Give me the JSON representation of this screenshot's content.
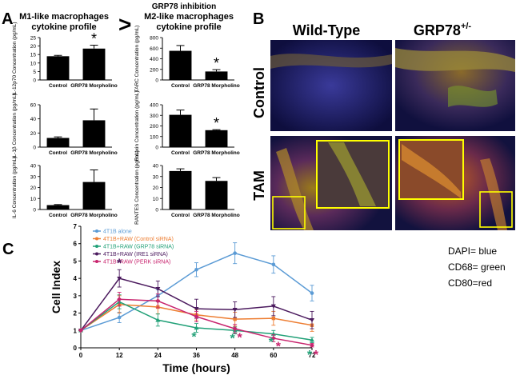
{
  "panel_labels": {
    "a": "A",
    "b": "B",
    "c": "C"
  },
  "panel_a": {
    "top_label": "GRP78 inhibition",
    "m1_title_1": "M1-like macrophages",
    "m1_title_2": "cytokine profile",
    "m2_title_1": "M2-like macrophages",
    "m2_title_2": "cytokine profile",
    "comparator": ">"
  },
  "panel_b": {
    "col_wt": "Wild-Type",
    "col_grp_base": "GRP78",
    "col_grp_sup": "+/-",
    "row_control": "Control",
    "row_tam": "TAM",
    "legend": [
      "DAPI= blue",
      "CD68= green",
      "CD80=red"
    ]
  },
  "colors": {
    "bar": "#000000",
    "series_alone": "#5b9bd5",
    "series_control": "#ed7d31",
    "series_grp78": "#21a077",
    "series_ire1": "#4b1a5e",
    "series_perk": "#c8246e",
    "micro_bg": "#12124a",
    "inset_border": "#ffff00"
  },
  "chart_data": [
    {
      "type": "bar",
      "id": "il12",
      "categories": [
        "Control",
        "GRP78 Morpholino"
      ],
      "values": [
        14,
        18.5
      ],
      "errors": [
        0.5,
        2
      ],
      "ylabel": "IL-12p70 Concentration (pg/mL)",
      "ylim": [
        0,
        25
      ],
      "yticks": [
        0,
        5,
        10,
        15,
        20,
        25
      ],
      "annotations": [
        "*"
      ]
    },
    {
      "type": "bar",
      "id": "il1b",
      "categories": [
        "Control",
        "GRP78 Morpholino"
      ],
      "values": [
        13,
        38
      ],
      "errors": [
        1.5,
        16
      ],
      "ylabel": "IL-1β Concentration (pg/mL)",
      "ylim": [
        0,
        60
      ],
      "yticks": [
        0,
        20,
        40,
        60
      ],
      "annotations": []
    },
    {
      "type": "bar",
      "id": "il6",
      "categories": [
        "Control",
        "GRP78 Morpholino"
      ],
      "values": [
        4,
        25
      ],
      "errors": [
        0.5,
        11
      ],
      "ylabel": "IL-6 Concentration (pg/mL)",
      "ylim": [
        0,
        40
      ],
      "yticks": [
        0,
        10,
        20,
        30,
        40
      ],
      "annotations": []
    },
    {
      "type": "bar",
      "id": "tarc",
      "categories": [
        "Control",
        "GRP78 Morpholino"
      ],
      "values": [
        550,
        160
      ],
      "errors": [
        100,
        35
      ],
      "ylabel": "TARC Concentration (pg/mL)",
      "ylim": [
        0,
        800
      ],
      "yticks": [
        0,
        200,
        400,
        600,
        800
      ],
      "annotations": [
        "*"
      ]
    },
    {
      "type": "bar",
      "id": "eotaxin",
      "categories": [
        "Control",
        "GRP78 Morpholino"
      ],
      "values": [
        305,
        160
      ],
      "errors": [
        45,
        5
      ],
      "ylabel": "Eotaxin Concentration (pg/mL)",
      "ylim": [
        0,
        400
      ],
      "yticks": [
        0,
        100,
        200,
        300,
        400
      ],
      "annotations": [
        "*"
      ]
    },
    {
      "type": "bar",
      "id": "rantes",
      "categories": [
        "Control",
        "GRP78 Morpholino"
      ],
      "values": [
        35,
        26
      ],
      "errors": [
        2,
        3
      ],
      "ylabel": "RANTES Concentration (pg/mL)",
      "ylim": [
        0,
        40
      ],
      "yticks": [
        0,
        10,
        20,
        30,
        40
      ],
      "annotations": []
    },
    {
      "type": "line",
      "id": "cell_index",
      "x": [
        0,
        12,
        24,
        36,
        48,
        60,
        72
      ],
      "xlabel": "Time (hours)",
      "ylabel": "Cell Index",
      "xlim": [
        0,
        72
      ],
      "ylim": [
        0,
        7
      ],
      "xticks": [
        0,
        12,
        24,
        36,
        48,
        60,
        72
      ],
      "yticks": [
        0,
        1,
        2,
        3,
        4,
        5,
        6,
        7
      ],
      "legend_position": "top-left",
      "series": [
        {
          "name": "4T1B alone",
          "values": [
            1,
            1.75,
            3.0,
            4.5,
            5.45,
            4.8,
            3.15
          ],
          "errors": [
            0,
            0.3,
            0.35,
            0.4,
            0.6,
            0.5,
            0.45
          ]
        },
        {
          "name": "4T1B+RAW (Control siRNA)",
          "values": [
            1,
            2.5,
            2.35,
            1.9,
            1.65,
            1.7,
            1.3
          ],
          "errors": [
            0,
            0.5,
            0.4,
            0.3,
            0.4,
            0.4,
            0.35
          ]
        },
        {
          "name": "4T1B+RAW (GRP78 siRNA)",
          "values": [
            1,
            2.65,
            1.6,
            1.15,
            1.0,
            0.8,
            0.45
          ],
          "errors": [
            0,
            0.4,
            0.35,
            0.25,
            0.2,
            0.2,
            0.15
          ]
        },
        {
          "name": "4T1B+RAW (IRE1 siRNA)",
          "values": [
            1,
            4.0,
            3.4,
            2.25,
            2.2,
            2.4,
            1.6
          ],
          "errors": [
            0,
            0.5,
            0.45,
            0.55,
            0.45,
            0.55,
            0.5
          ]
        },
        {
          "name": "4T1B+RAW (PERK siRNA)",
          "values": [
            1,
            2.8,
            2.7,
            1.8,
            1.1,
            0.55,
            0.15
          ],
          "errors": [
            0,
            0.4,
            0.4,
            0.3,
            0.25,
            0.2,
            0.1
          ]
        }
      ],
      "annotations": [
        {
          "x": 12,
          "text": "*",
          "series": "4T1B+RAW (IRE1 siRNA)"
        },
        {
          "x": 36,
          "text": "*",
          "series": "4T1B+RAW (GRP78 siRNA)"
        },
        {
          "x": 48,
          "text": "*",
          "series": "4T1B+RAW (GRP78 siRNA)"
        },
        {
          "x": 48,
          "text": "*",
          "series": "4T1B+RAW (PERK siRNA)"
        },
        {
          "x": 60,
          "text": "*",
          "series": "4T1B+RAW (GRP78 siRNA)"
        },
        {
          "x": 60,
          "text": "*",
          "series": "4T1B+RAW (PERK siRNA)"
        },
        {
          "x": 72,
          "text": "*",
          "series": "4T1B+RAW (GRP78 siRNA)"
        },
        {
          "x": 72,
          "text": "*",
          "series": "4T1B+RAW (PERK siRNA)"
        }
      ]
    }
  ]
}
